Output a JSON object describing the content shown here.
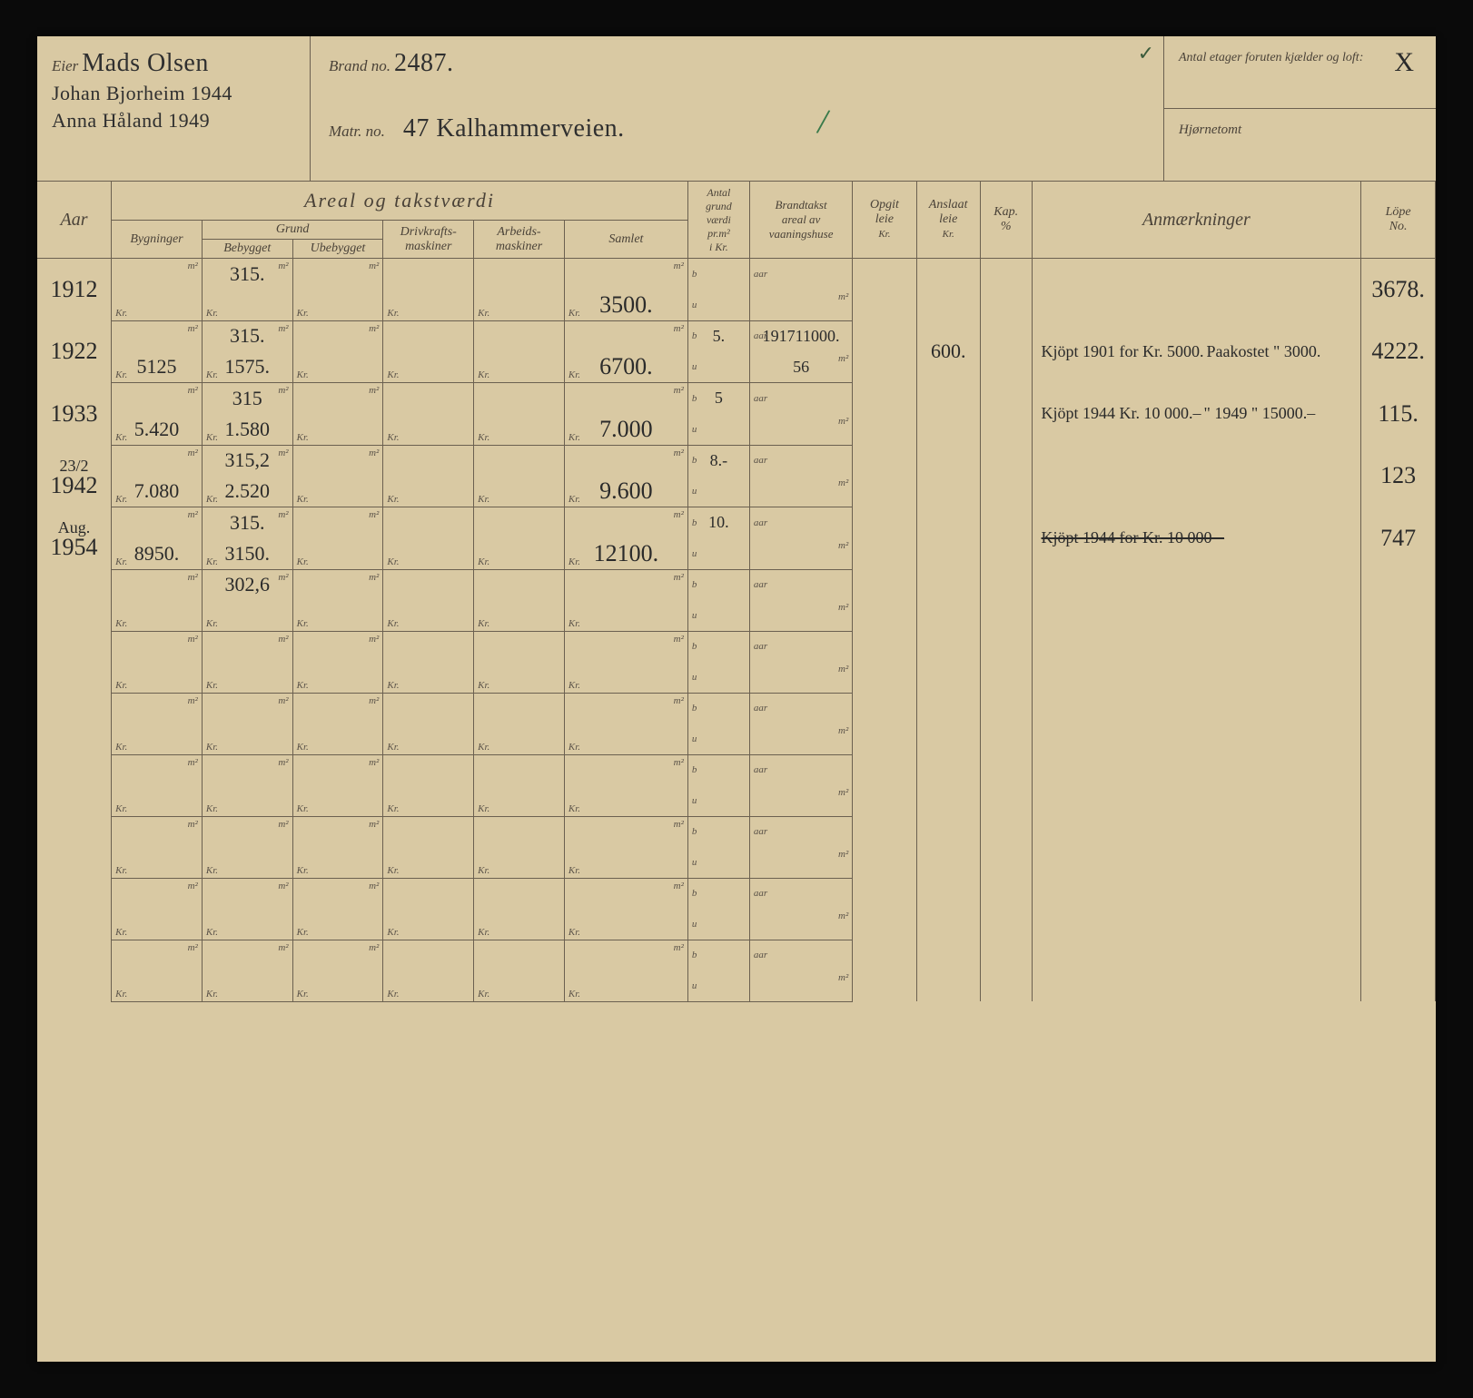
{
  "header": {
    "eier_label": "Eier",
    "eier_lines": [
      "Mads Olsen",
      "Johan Bjorheim  1944",
      "Anna Håland 1949"
    ],
    "brand_label": "Brand no.",
    "brand_value": "2487.",
    "matr_label": "Matr. no.",
    "matr_value": "47 Kalhammerveien.",
    "antal_label": "Antal etager foruten kjælder og loft:",
    "antal_value": "X",
    "hjorne_label": "Hjørnetomt",
    "topmark": "✓",
    "green_mark": "/"
  },
  "columns": {
    "aar": "Aar",
    "areal_main": "Areal og takstværdi",
    "grund": "Grund",
    "bygninger": "Bygninger",
    "bebygget": "Bebygget",
    "ubebygget": "Ubebygget",
    "drivkraft": "Drivkrafts-\nmaskiner",
    "arbeids": "Arbeids-\nmaskiner",
    "samlet": "Samlet",
    "antal_grund": "Antal\ngrund\nværdi\npr.m²\ni Kr.",
    "brandtakst": "Brandtakst\nareal av\nvaaningshuse",
    "opgit": "Opgit\nleie",
    "anslaat": "Anslaat\nleie",
    "kap": "Kap.\n%",
    "anm": "Anmærkninger",
    "lope": "Löpe\nNo."
  },
  "units": {
    "kr": "Kr.",
    "m2": "m²",
    "aar": "aar",
    "b": "b",
    "u": "u"
  },
  "rows": [
    {
      "aar": "1912",
      "beb_top": "315.",
      "byg_bot": "",
      "beb_bot": "",
      "sam_bot": "3500.",
      "ant_b": "",
      "brt_aar": "",
      "lope": "3678."
    },
    {
      "aar": "1922",
      "beb_top": "315.",
      "byg_bot": "5125",
      "beb_bot": "1575.",
      "sam_bot": "6700.",
      "ant_b": "5.",
      "brt_aar": "1917",
      "brt_val": "11000.",
      "brt_m2": "56",
      "ans": "600.",
      "anm1": "Kjöpt 1901 for Kr. 5000.",
      "anm2": "Paakostet \" 3000.",
      "lope": "4222."
    },
    {
      "aar": "1933",
      "beb_top": "315",
      "byg_bot": "5.420",
      "beb_bot": "1.580",
      "sam_bot": "7.000",
      "ant_b": "5",
      "anm1": "Kjöpt 1944 Kr. 10 000.–",
      "anm2": "\"   1949 \" 15000.–",
      "lope": "115."
    },
    {
      "aar_pre": "23/2",
      "aar": "1942",
      "beb_top": "315,2",
      "byg_bot": "7.080",
      "beb_bot": "2.520",
      "sam_bot": "9.600",
      "ant_b": "8.-",
      "lope": "123"
    },
    {
      "aar_pre": "Aug.",
      "aar": "1954",
      "beb_top": "315.",
      "byg_bot": "8950.",
      "beb_bot": "3150.",
      "sam_bot": "12100.",
      "ant_b": "10.",
      "anm1_struck": "Kjöpt 1944 for Kr. 10 000 –",
      "lope": "747"
    },
    {
      "beb_top": "302,6"
    },
    {},
    {},
    {},
    {},
    {},
    {}
  ]
}
